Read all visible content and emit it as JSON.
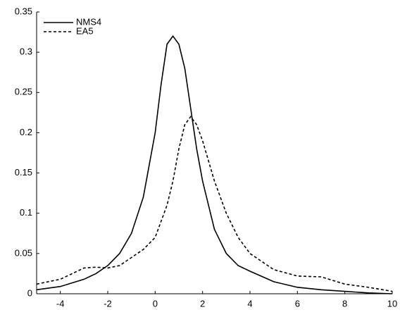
{
  "chart_data": {
    "type": "line",
    "x": [
      -5,
      -4,
      -3,
      -2.5,
      -2,
      -1.5,
      -1,
      -0.5,
      0,
      0.25,
      0.5,
      0.75,
      1,
      1.25,
      1.5,
      1.75,
      2,
      2.5,
      3,
      3.5,
      4,
      5,
      6,
      7,
      8,
      9,
      10
    ],
    "series": [
      {
        "name": "NMS4",
        "color": "#000000",
        "dash": false,
        "values": [
          0.005,
          0.009,
          0.018,
          0.025,
          0.035,
          0.05,
          0.075,
          0.12,
          0.2,
          0.26,
          0.31,
          0.32,
          0.31,
          0.28,
          0.23,
          0.18,
          0.14,
          0.08,
          0.05,
          0.035,
          0.028,
          0.015,
          0.008,
          0.005,
          0.003,
          0.001,
          0
        ]
      },
      {
        "name": "EA5",
        "color": "#000000",
        "dash": true,
        "values": [
          0.012,
          0.018,
          0.032,
          0.033,
          0.032,
          0.035,
          0.045,
          0.055,
          0.07,
          0.09,
          0.11,
          0.14,
          0.18,
          0.21,
          0.22,
          0.21,
          0.19,
          0.14,
          0.1,
          0.07,
          0.05,
          0.03,
          0.022,
          0.021,
          0.012,
          0.008,
          0.003
        ]
      }
    ],
    "xlim": [
      -5,
      10
    ],
    "xticks": [
      -4,
      -2,
      0,
      2,
      4,
      6,
      8,
      10
    ],
    "ylim": [
      0,
      0.35
    ],
    "yticks": [
      0,
      0.05,
      0.1,
      0.15,
      0.2,
      0.25,
      0.3,
      0.35
    ],
    "legend": "upper left"
  }
}
